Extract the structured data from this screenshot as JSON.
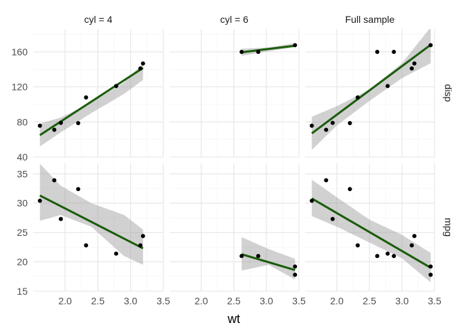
{
  "chart_data": {
    "type": "scatter",
    "facet_columns": [
      "cyl = 4",
      "cyl = 6",
      "Full sample"
    ],
    "facet_rows": [
      "disp",
      "mpg"
    ],
    "xlabel": "wt",
    "ylabel": "",
    "x_ticks": [
      2.0,
      2.5,
      3.0,
      3.5
    ],
    "x_tick_labels": [
      "2.0",
      "2.5",
      "3.0",
      "3.5"
    ],
    "xlim": [
      1.513,
      3.5
    ],
    "rows": {
      "disp": {
        "ylim": [
          40,
          186
        ],
        "y_ticks": [
          40,
          80,
          120,
          160
        ],
        "y_tick_labels": [
          "40",
          "80",
          "120",
          "160"
        ]
      },
      "mpg": {
        "ylim": [
          15,
          36.8
        ],
        "y_ticks": [
          15,
          20,
          25,
          30,
          35
        ],
        "y_tick_labels": [
          "15",
          "20",
          "25",
          "30",
          "35"
        ]
      }
    },
    "panels": [
      {
        "column": "cyl = 4",
        "row": "disp",
        "points": [
          [
            1.615,
            75.7
          ],
          [
            1.835,
            71.1
          ],
          [
            1.935,
            79.0
          ],
          [
            2.2,
            78.7
          ],
          [
            2.32,
            108.0
          ],
          [
            2.78,
            121.0
          ],
          [
            3.15,
            141.0
          ],
          [
            3.19,
            146.7
          ]
        ],
        "fit": {
          "x": [
            1.615,
            3.19
          ],
          "y": [
            65.0,
            141.6
          ]
        },
        "band": {
          "x": [
            1.615,
            1.93,
            2.4,
            2.9,
            3.19
          ],
          "lower": [
            52.0,
            68.0,
            90.0,
            112.0,
            128.0
          ],
          "upper": [
            78.0,
            85.0,
            102.0,
            125.0,
            147.0
          ]
        }
      },
      {
        "column": "cyl = 6",
        "row": "disp",
        "points": [
          [
            2.62,
            160.0
          ],
          [
            2.875,
            160.0
          ],
          [
            3.44,
            167.6
          ]
        ],
        "fit": {
          "x": [
            2.62,
            3.44
          ],
          "y": [
            159.5,
            167.0
          ]
        },
        "band": {
          "x": [
            2.62,
            3.03,
            3.44
          ],
          "lower": [
            155.5,
            160.5,
            165.5
          ],
          "upper": [
            163.5,
            165.0,
            170.0
          ]
        }
      },
      {
        "column": "Full sample",
        "row": "disp",
        "points": [
          [
            1.615,
            75.7
          ],
          [
            1.835,
            71.1
          ],
          [
            1.935,
            79.0
          ],
          [
            2.2,
            78.7
          ],
          [
            2.32,
            108.0
          ],
          [
            2.62,
            160.0
          ],
          [
            2.78,
            121.0
          ],
          [
            2.875,
            160.0
          ],
          [
            3.15,
            141.0
          ],
          [
            3.19,
            146.7
          ],
          [
            3.44,
            167.6
          ]
        ],
        "fit": {
          "x": [
            1.615,
            3.44
          ],
          "y": [
            67.0,
            168.0
          ]
        },
        "band": {
          "x": [
            1.615,
            2.0,
            2.5,
            3.0,
            3.44
          ],
          "lower": [
            48.0,
            76.0,
            104.0,
            130.0,
            147.0
          ],
          "upper": [
            86.0,
            98.0,
            117.0,
            147.0,
            188.0
          ]
        }
      },
      {
        "column": "cyl = 4",
        "row": "mpg",
        "points": [
          [
            1.615,
            30.4
          ],
          [
            1.835,
            33.9
          ],
          [
            1.935,
            27.3
          ],
          [
            2.2,
            32.4
          ],
          [
            2.32,
            22.8
          ],
          [
            2.78,
            21.4
          ],
          [
            3.15,
            22.8
          ],
          [
            3.19,
            24.4
          ]
        ],
        "fit": {
          "x": [
            1.615,
            3.19
          ],
          "y": [
            31.3,
            22.3
          ]
        },
        "band": {
          "x": [
            1.615,
            1.93,
            2.4,
            2.9,
            3.19
          ],
          "lower": [
            27.0,
            28.0,
            26.0,
            21.0,
            19.5
          ],
          "upper": [
            36.7,
            33.0,
            30.0,
            28.0,
            25.5
          ]
        }
      },
      {
        "column": "cyl = 6",
        "row": "mpg",
        "points": [
          [
            2.62,
            21.0
          ],
          [
            2.875,
            21.0
          ],
          [
            3.44,
            19.2
          ],
          [
            3.44,
            17.8
          ]
        ],
        "fit": {
          "x": [
            2.62,
            3.44
          ],
          "y": [
            21.3,
            18.6
          ]
        },
        "band": {
          "x": [
            2.62,
            3.03,
            3.44
          ],
          "lower": [
            18.5,
            19.5,
            17.0
          ],
          "upper": [
            24.2,
            22.2,
            20.5
          ]
        }
      },
      {
        "column": "Full sample",
        "row": "mpg",
        "points": [
          [
            1.615,
            30.4
          ],
          [
            1.835,
            33.9
          ],
          [
            1.935,
            27.3
          ],
          [
            2.2,
            32.4
          ],
          [
            2.32,
            22.8
          ],
          [
            2.62,
            21.0
          ],
          [
            2.78,
            21.4
          ],
          [
            2.875,
            21.0
          ],
          [
            3.15,
            22.8
          ],
          [
            3.19,
            24.4
          ],
          [
            3.44,
            19.2
          ],
          [
            3.44,
            17.8
          ]
        ],
        "fit": {
          "x": [
            1.615,
            3.44
          ],
          "y": [
            30.8,
            19.0
          ]
        },
        "band": {
          "x": [
            1.615,
            2.0,
            2.5,
            3.0,
            3.44
          ],
          "lower": [
            27.8,
            26.0,
            23.3,
            20.6,
            16.5
          ],
          "upper": [
            34.0,
            31.0,
            27.2,
            24.6,
            21.5
          ]
        }
      }
    ],
    "colors": {
      "fit_line": "#1a5c0a",
      "band": "#999999",
      "points": "#000000",
      "grid": "#e5e5e5"
    },
    "grid": true,
    "legend": "none"
  }
}
